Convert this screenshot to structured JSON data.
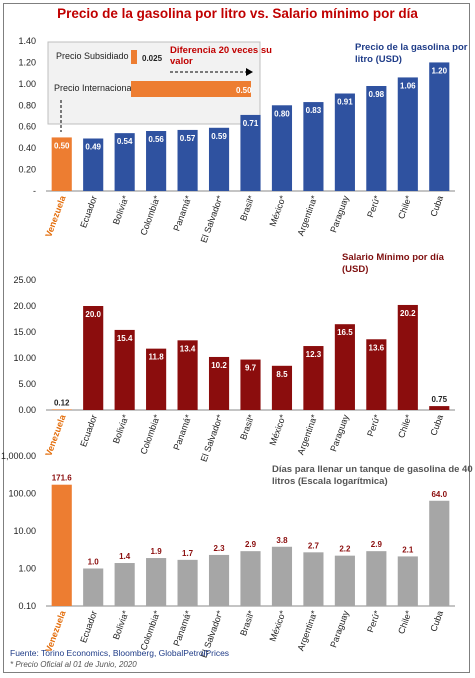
{
  "title": "Precio de la gasolina por litro vs. Salario mínimo por día",
  "categories": [
    "Venezuela",
    "Ecuador",
    "Bolivia*",
    "Colombia*",
    "Panamá*",
    "El Salvador*",
    "Brasil*",
    "México*",
    "Argentina*",
    "Paraguay",
    "Perú*",
    "Chile*",
    "Cuba"
  ],
  "chart_data": [
    {
      "type": "bar",
      "title": "Precio de la gasolina por litro (USD)",
      "categories": [
        "Venezuela",
        "Ecuador",
        "Bolivia*",
        "Colombia*",
        "Panamá*",
        "El Salvador*",
        "Brasil*",
        "México*",
        "Argentina*",
        "Paraguay",
        "Perú*",
        "Chile*",
        "Cuba"
      ],
      "values": [
        0.5,
        0.49,
        0.54,
        0.56,
        0.57,
        0.59,
        0.71,
        0.8,
        0.83,
        0.91,
        0.98,
        1.06,
        1.2
      ],
      "value_labels": [
        "0.50",
        "0.49",
        "0.54",
        "0.56",
        "0.57",
        "0.59",
        "0.71",
        "0.80",
        "0.83",
        "0.91",
        "0.98",
        "1.06",
        "1.20"
      ],
      "yticks": [
        "-",
        "0.20",
        "0.40",
        "0.60",
        "0.80",
        "1.00",
        "1.20",
        "1.40"
      ],
      "ylim": [
        0,
        1.4
      ],
      "colors": {
        "highlight": "#ed7d31",
        "bar": "#2f52a0"
      },
      "inset": {
        "row1_label": "Precio Subsidiado",
        "row1_value": 0.025,
        "row1_value_label": "0.025",
        "row2_label": "Precio Internacional",
        "row2_value": 0.5,
        "row2_value_label": "0.50",
        "annotation": "Diferencia 20 veces su valor"
      }
    },
    {
      "type": "bar",
      "title": "Salario Mínimo por día (USD)",
      "categories": [
        "Venezuela",
        "Ecuador",
        "Bolivia*",
        "Colombia*",
        "Panamá*",
        "El Salvador*",
        "Brasil*",
        "México*",
        "Argentina*",
        "Paraguay",
        "Perú*",
        "Chile*",
        "Cuba"
      ],
      "values": [
        0.12,
        20.0,
        15.4,
        11.8,
        13.4,
        10.2,
        9.7,
        8.5,
        12.3,
        16.5,
        13.6,
        20.2,
        0.75
      ],
      "value_labels": [
        "0.12",
        "20.0",
        "15.4",
        "11.8",
        "13.4",
        "10.2",
        "9.7",
        "8.5",
        "12.3",
        "16.5",
        "13.6",
        "20.2",
        "0.75"
      ],
      "yticks": [
        "0.00",
        "5.00",
        "10.00",
        "15.00",
        "20.00",
        "25.00"
      ],
      "ylim": [
        0,
        25
      ],
      "colors": {
        "highlight": "#ed7d31",
        "bar": "#8b0d0d"
      }
    },
    {
      "type": "bar",
      "title": "Días para llenar un tanque de gasolina de 40 litros (Escala logarítmica)",
      "scale": "log",
      "categories": [
        "Venezuela",
        "Ecuador",
        "Bolivia*",
        "Colombia*",
        "Panamá*",
        "El Salvador*",
        "Brasil*",
        "México*",
        "Argentina*",
        "Paraguay",
        "Perú*",
        "Chile*",
        "Cuba"
      ],
      "values": [
        171.6,
        1.0,
        1.4,
        1.9,
        1.7,
        2.3,
        2.9,
        3.8,
        2.7,
        2.2,
        2.9,
        2.1,
        64.0
      ],
      "value_labels": [
        "171.6",
        "1.0",
        "1.4",
        "1.9",
        "1.7",
        "2.3",
        "2.9",
        "3.8",
        "2.7",
        "2.2",
        "2.9",
        "2.1",
        "64.0"
      ],
      "yticks": [
        "0.10",
        "1.00",
        "10.00",
        "100.00",
        "1,000.00"
      ],
      "ylim": [
        0.1,
        1000
      ],
      "colors": {
        "highlight": "#ed7d31",
        "bar": "#a6a6a6",
        "highlight2": "#a6a6a6",
        "label": "#8b0d0d"
      }
    }
  ],
  "footer": {
    "source": "Fuente: Torino Economics, Bloomberg, GlobalPetrolPrices",
    "note": "* Precio Oficial al 01 de Junio, 2020"
  }
}
